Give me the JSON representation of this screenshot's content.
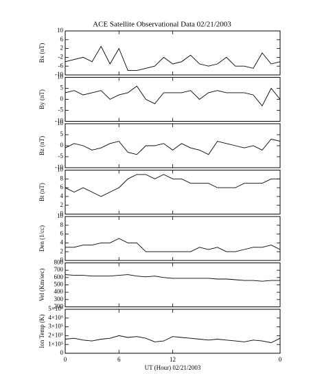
{
  "chart_data": [
    {
      "type": "line",
      "title": "ACE Satellite Observational Data   02/21/2003",
      "y_label": "Bx (nT)",
      "x": [
        0,
        1,
        2,
        3,
        4,
        5,
        6,
        7,
        8,
        9,
        10,
        11,
        12,
        13,
        14,
        15,
        16,
        17,
        18,
        19,
        20,
        21,
        22,
        23,
        24
      ],
      "values": [
        -4,
        -3,
        -2,
        -4,
        3,
        -5,
        2,
        -8,
        -8,
        -7,
        -6,
        -2,
        -5,
        -4,
        -1,
        -5,
        -6,
        -5,
        -2,
        -6,
        -6,
        -7,
        0,
        -5,
        -4
      ],
      "xlim": [
        0,
        24
      ],
      "xticks": [
        0,
        6,
        12,
        {
          "value": 24,
          "label": "0"
        }
      ],
      "ylim": [
        -10,
        10
      ],
      "yticks": [
        -10,
        -6,
        -2,
        2,
        6,
        10
      ]
    },
    {
      "type": "line",
      "y_label": "By (nT)",
      "x": [
        0,
        1,
        2,
        3,
        4,
        5,
        6,
        7,
        8,
        9,
        10,
        11,
        12,
        13,
        14,
        15,
        16,
        17,
        18,
        19,
        20,
        21,
        22,
        23,
        24
      ],
      "values": [
        3,
        4,
        2,
        3,
        4,
        0,
        2,
        3,
        6,
        0,
        -2,
        3,
        3,
        3,
        4,
        0,
        3,
        4,
        3,
        3,
        3,
        2,
        -3,
        5,
        0
      ],
      "xlim": [
        0,
        24
      ],
      "xticks": [
        0,
        6,
        12,
        {
          "value": 24,
          "label": "0"
        }
      ],
      "ylim": [
        -10,
        10
      ],
      "yticks": [
        -10,
        -5,
        0,
        5,
        10
      ]
    },
    {
      "type": "line",
      "y_label": "Bz (nT)",
      "x": [
        0,
        1,
        2,
        3,
        4,
        5,
        6,
        7,
        8,
        9,
        10,
        11,
        12,
        13,
        14,
        15,
        16,
        17,
        18,
        19,
        20,
        21,
        22,
        23,
        24
      ],
      "values": [
        -1,
        1,
        0,
        -2,
        -1,
        1,
        2,
        -3,
        -4,
        0,
        0,
        1,
        -2,
        1,
        -1,
        -2,
        -4,
        2,
        1,
        0,
        -1,
        0,
        -2,
        3,
        2
      ],
      "xlim": [
        0,
        24
      ],
      "xticks": [
        0,
        6,
        12,
        {
          "value": 24,
          "label": "0"
        }
      ],
      "ylim": [
        -10,
        10
      ],
      "yticks": [
        -10,
        -5,
        0,
        5,
        10
      ]
    },
    {
      "type": "line",
      "y_label": "Bt (nT)",
      "x": [
        0,
        1,
        2,
        3,
        4,
        5,
        6,
        7,
        8,
        9,
        10,
        11,
        12,
        13,
        14,
        15,
        16,
        17,
        18,
        19,
        20,
        21,
        22,
        23,
        24
      ],
      "values": [
        6,
        5,
        6,
        5,
        4,
        5,
        6,
        8,
        9,
        9,
        8,
        9,
        8,
        8,
        7,
        7,
        7,
        6,
        6,
        6,
        7,
        7,
        7,
        8,
        8
      ],
      "xlim": [
        0,
        24
      ],
      "xticks": [
        0,
        6,
        12,
        {
          "value": 24,
          "label": "0"
        }
      ],
      "ylim": [
        0,
        10
      ],
      "yticks": [
        0,
        2,
        4,
        6,
        8,
        10
      ]
    },
    {
      "type": "line",
      "y_label": "Den (1/cc)",
      "x": [
        0,
        1,
        2,
        3,
        4,
        5,
        6,
        7,
        8,
        9,
        10,
        11,
        12,
        13,
        14,
        15,
        16,
        17,
        18,
        19,
        20,
        21,
        22,
        23,
        24
      ],
      "values": [
        3,
        3,
        3.5,
        3.5,
        4,
        4,
        5,
        4,
        4,
        2,
        2,
        2,
        2,
        2,
        2,
        3,
        2.5,
        3,
        2,
        2,
        2.5,
        3,
        3,
        3.5,
        2.5
      ],
      "xlim": [
        0,
        24
      ],
      "xticks": [
        0,
        6,
        12,
        {
          "value": 24,
          "label": "0"
        }
      ],
      "ylim": [
        0,
        10
      ],
      "yticks": [
        0,
        2,
        4,
        6,
        8,
        10
      ]
    },
    {
      "type": "line",
      "y_label": "Vel (Km/sec)",
      "x": [
        0,
        1,
        2,
        3,
        4,
        5,
        6,
        7,
        8,
        9,
        10,
        11,
        12,
        13,
        14,
        15,
        16,
        17,
        18,
        19,
        20,
        21,
        22,
        23,
        24
      ],
      "values": [
        640,
        630,
        630,
        620,
        620,
        620,
        630,
        640,
        620,
        610,
        620,
        600,
        590,
        590,
        590,
        590,
        590,
        580,
        580,
        570,
        560,
        560,
        550,
        560,
        560
      ],
      "xlim": [
        0,
        24
      ],
      "xticks": [
        0,
        6,
        12,
        {
          "value": 24,
          "label": "0"
        }
      ],
      "ylim": [
        200,
        800
      ],
      "yticks": [
        200,
        300,
        400,
        500,
        600,
        700,
        800
      ]
    },
    {
      "type": "line",
      "y_label": "Ion Temp (K)",
      "x_label": "UT (Hour)   02/21/2003",
      "x": [
        0,
        1,
        2,
        3,
        4,
        5,
        6,
        7,
        8,
        9,
        10,
        11,
        12,
        13,
        14,
        15,
        16,
        17,
        18,
        19,
        20,
        21,
        22,
        23,
        24
      ],
      "values": [
        160000,
        170000,
        150000,
        140000,
        160000,
        170000,
        200000,
        180000,
        190000,
        170000,
        130000,
        140000,
        190000,
        180000,
        170000,
        160000,
        150000,
        160000,
        150000,
        140000,
        130000,
        150000,
        140000,
        120000,
        170000
      ],
      "xlim": [
        0,
        24
      ],
      "xticks": [
        0,
        6,
        12,
        {
          "value": 24,
          "label": "0"
        }
      ],
      "ylim": [
        0,
        500000
      ],
      "yticks": [
        0,
        {
          "value": 100000,
          "label": "1×10⁵"
        },
        {
          "value": 200000,
          "label": "2×10⁵"
        },
        {
          "value": 300000,
          "label": "3×10⁵"
        },
        {
          "value": 400000,
          "label": "4×10⁵"
        },
        {
          "value": 500000,
          "label": "5×10⁵"
        }
      ]
    }
  ]
}
